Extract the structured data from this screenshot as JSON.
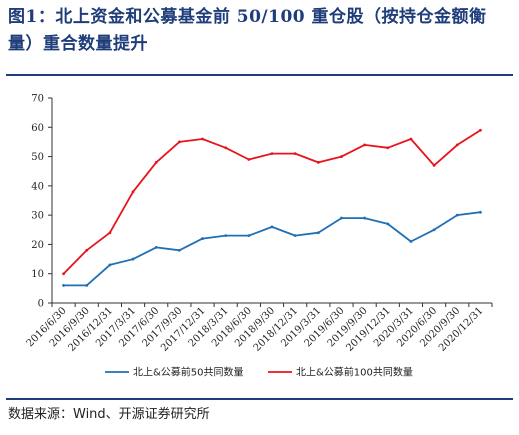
{
  "figure": {
    "title": "图1：北上资金和公募基金前 50/100 重仓股（按持仓金额衡量）重合数量提升",
    "source": "数据来源：Wind、开源证券研究所"
  },
  "chart_data": {
    "type": "line",
    "title": "",
    "xlabel": "",
    "ylabel": "",
    "ylim": [
      0,
      70
    ],
    "yticks": [
      0,
      10,
      20,
      30,
      40,
      50,
      60,
      70
    ],
    "grid": false,
    "legend_position": "bottom",
    "x": [
      "2016/6/30",
      "2016/9/30",
      "2016/12/31",
      "2017/3/31",
      "2017/6/30",
      "2017/9/30",
      "2017/12/31",
      "2018/3/31",
      "2018/6/30",
      "2018/9/30",
      "2018/12/31",
      "2019/3/31",
      "2019/6/30",
      "2019/9/30",
      "2019/12/31",
      "2020/3/31",
      "2020/6/30",
      "2020/9/30",
      "2020/12/31"
    ],
    "series": [
      {
        "name": "北上&公募前50共同数量",
        "color": "#1f6fb5",
        "values": [
          6,
          6,
          13,
          15,
          19,
          18,
          22,
          23,
          23,
          26,
          23,
          24,
          29,
          29,
          27,
          21,
          25,
          30,
          31
        ]
      },
      {
        "name": "北上&公募前100共同数量",
        "color": "#e8141b",
        "values": [
          10,
          18,
          24,
          38,
          48,
          55,
          56,
          53,
          49,
          51,
          51,
          48,
          50,
          54,
          53,
          56,
          47,
          54,
          59
        ]
      }
    ]
  }
}
